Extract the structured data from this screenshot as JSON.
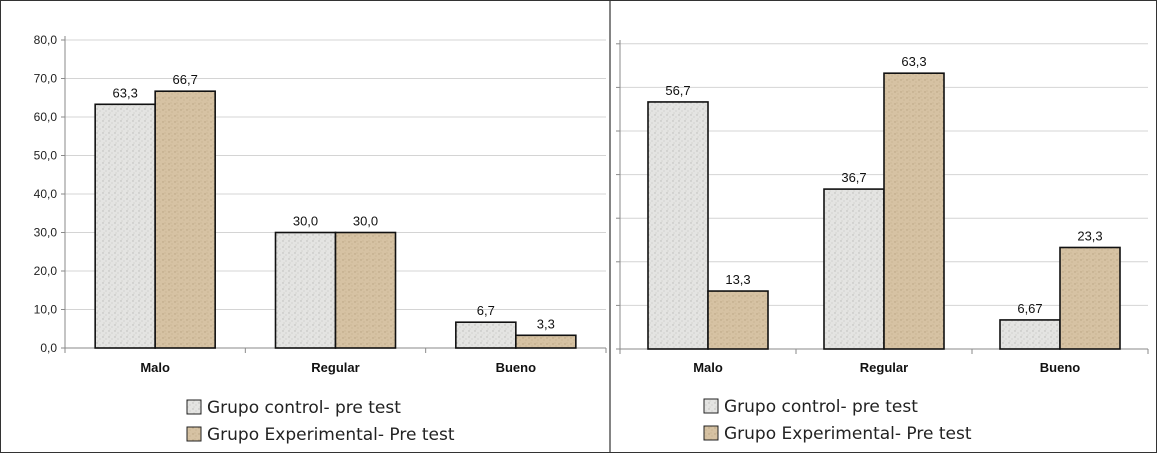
{
  "chart_data": [
    {
      "type": "bar",
      "categories": [
        "Malo",
        "Regular",
        "Bueno"
      ],
      "series": [
        {
          "name": "Grupo control- pre test",
          "values": [
            63.3,
            30.0,
            6.7
          ],
          "labels": [
            "63,3",
            "30,0",
            "6,7"
          ]
        },
        {
          "name": "Grupo Experimental- Pre test",
          "values": [
            66.7,
            30.0,
            3.3
          ],
          "labels": [
            "66,7",
            "30,0",
            "3,3"
          ]
        }
      ],
      "ylim": [
        0,
        80
      ],
      "yticks": [
        "0,0",
        "10,0",
        "20,0",
        "30,0",
        "40,0",
        "50,0",
        "60,0",
        "70,0",
        "80,0"
      ],
      "grid": true,
      "legend": "bottom"
    },
    {
      "type": "bar",
      "categories": [
        "Malo",
        "Regular",
        "Bueno"
      ],
      "series": [
        {
          "name": "Grupo control- pre test",
          "values": [
            56.7,
            36.7,
            6.67
          ],
          "labels": [
            "56,7",
            "36,7",
            "6,67"
          ]
        },
        {
          "name": "Grupo Experimental- Pre test",
          "values": [
            13.3,
            63.3,
            23.3
          ],
          "labels": [
            "13,3",
            "63,3",
            "23,3"
          ]
        }
      ],
      "ylim": [
        0,
        70
      ],
      "yticks": [],
      "grid": true,
      "legend": "bottom"
    }
  ],
  "colors": {
    "control_fill": "#e3e3e1",
    "experimental_fill": "#d8c4a6",
    "bar_stroke": "#111111",
    "grid": "#d4d4d4",
    "border": "#333333"
  }
}
